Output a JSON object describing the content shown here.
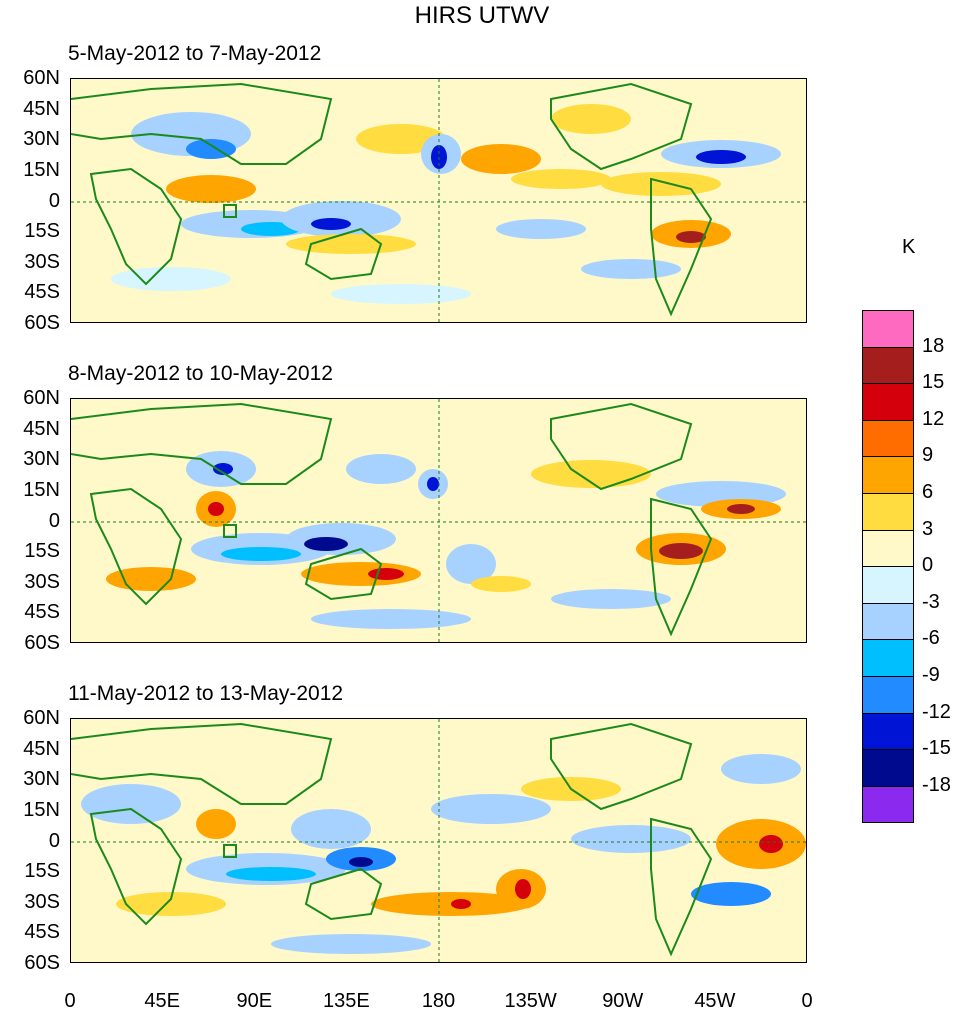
{
  "title": "HIRS UTWV",
  "panels": [
    {
      "label": "5-May-2012 to 7-May-2012"
    },
    {
      "label": "8-May-2012 to 10-May-2012"
    },
    {
      "label": "11-May-2012 to 13-May-2012"
    }
  ],
  "lat_labels": [
    "60N",
    "45N",
    "30N",
    "15N",
    "0",
    "15S",
    "30S",
    "45S",
    "60S"
  ],
  "lon_labels": [
    "0",
    "45E",
    "90E",
    "135E",
    "180",
    "135W",
    "90W",
    "45W",
    "0"
  ],
  "colorbar": {
    "unit": "K",
    "labels": [
      "18",
      "15",
      "12",
      "9",
      "6",
      "3",
      "0",
      "-3",
      "-6",
      "-9",
      "-12",
      "-15",
      "-18"
    ],
    "colors": [
      "#ff6ac1",
      "#a51e1e",
      "#d4000b",
      "#ff6d00",
      "#ffa502",
      "#ffdc40",
      "#fff9c9",
      "#d6f5ff",
      "#a7d1ff",
      "#00bfff",
      "#218bff",
      "#0014d6",
      "#000a8f",
      "#8b29ef"
    ]
  }
}
